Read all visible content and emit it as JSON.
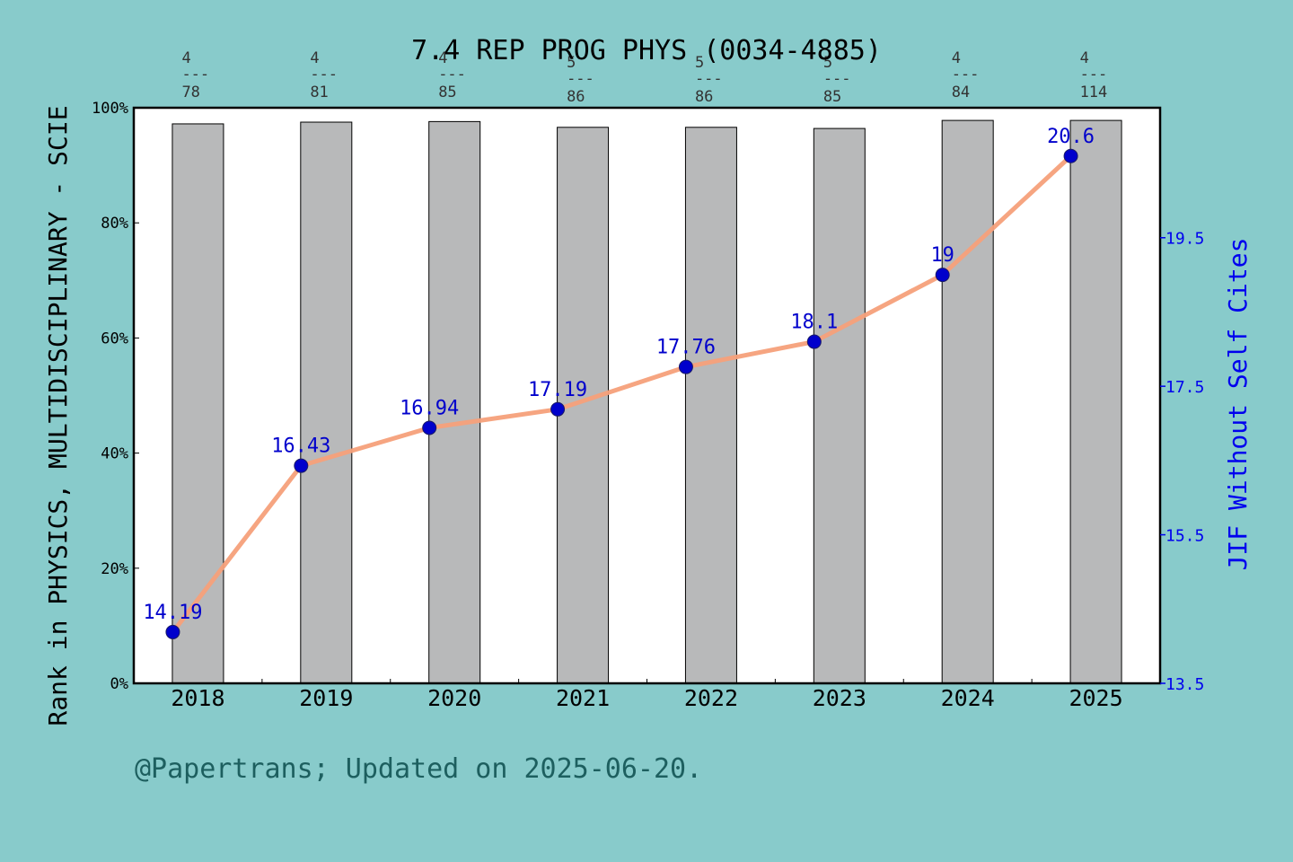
{
  "chart_data": {
    "type": "bar+line",
    "title": "7.4 REP PROG PHYS (0034-4885)",
    "ylabel_left": "Rank in PHYSICS, MULTIDISCIPLINARY - SCIE",
    "ylabel_right": "JIF Without Self Cites",
    "categories": [
      "2018",
      "2019",
      "2020",
      "2021",
      "2022",
      "2023",
      "2024",
      "2025"
    ],
    "rank_labels": [
      {
        "rank": "4",
        "total": "78"
      },
      {
        "rank": "4",
        "total": "81"
      },
      {
        "rank": "4",
        "total": "85"
      },
      {
        "rank": "5",
        "total": "86"
      },
      {
        "rank": "5",
        "total": "86"
      },
      {
        "rank": "5",
        "total": "85"
      },
      {
        "rank": "4",
        "total": "84"
      },
      {
        "rank": "4",
        "total": "114"
      }
    ],
    "rank_separator": "---",
    "bar_values_percent": [
      97.2,
      97.5,
      97.6,
      96.6,
      96.6,
      96.4,
      97.8,
      97.8
    ],
    "jif_values": [
      14.19,
      16.43,
      16.94,
      17.19,
      17.76,
      18.1,
      19,
      20.6
    ],
    "jif_labels": [
      "14.19",
      "16.43",
      "16.94",
      "17.19",
      "17.76",
      "18.1",
      "19",
      "20.6"
    ],
    "left_ticks": [
      "0%",
      "20%",
      "40%",
      "60%",
      "80%",
      "100%"
    ],
    "left_ylim": [
      0,
      100
    ],
    "right_ticks": [
      "13.5",
      "15.5",
      "17.5",
      "19.5"
    ],
    "right_ylim": [
      13.5,
      21.25
    ],
    "grid": false,
    "colors": {
      "background": "#88cbcb",
      "plot_background": "#ffffff",
      "bar_fill": "#b8b9ba",
      "line": "#f5a07a",
      "marker": "#0000cc",
      "label_blue": "#0000cc",
      "right_axis": "#0000ee"
    }
  },
  "footer": "@Papertrans; Updated on 2025-06-20."
}
